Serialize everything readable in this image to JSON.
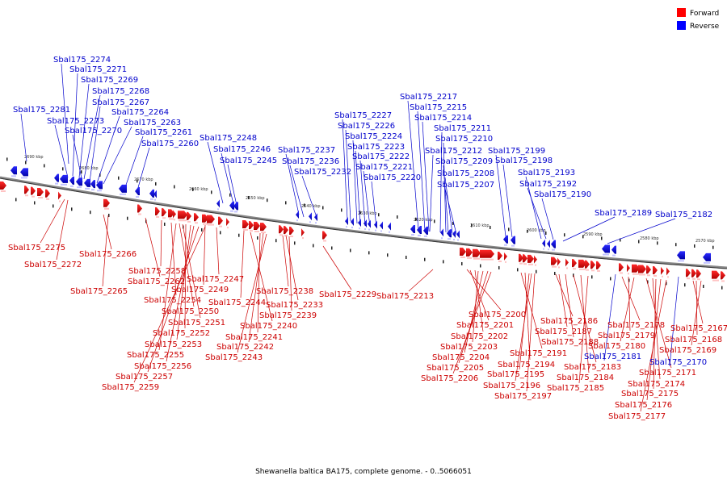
{
  "caption": "Shewanella baltica BA175, complete genome. - 0..5066051",
  "legend": [
    {
      "label": "Forward",
      "color": "#ff0000"
    },
    {
      "label": "Reverse",
      "color": "#0000ff"
    }
  ],
  "colors": {
    "forward": "#cc0000",
    "reverse": "#0000cc",
    "backbone": "#777777"
  },
  "scale_labels": [
    "2690 kbp",
    "2680 kbp",
    "2670 kbp",
    "2660 kbp",
    "2650 kbp",
    "2640 kbp",
    "2630 kbp",
    "2620 kbp",
    "2610 kbp",
    "2600 kbp",
    "2590 kbp",
    "2580 kbp",
    "2570 kbp"
  ],
  "reverse_labels": [
    "Sbal175_2274",
    "Sbal175_2271",
    "Sbal175_2269",
    "Sbal175_2268",
    "Sbal175_2267",
    "Sbal175_2281",
    "Sbal175_2264",
    "Sbal175_2273",
    "Sbal175_2263",
    "Sbal175_2270",
    "Sbal175_2261",
    "Sbal175_2260",
    "Sbal175_2248",
    "Sbal175_2246",
    "Sbal175_2245",
    "Sbal175_2237",
    "Sbal175_2236",
    "Sbal175_2232",
    "Sbal175_2227",
    "Sbal175_2226",
    "Sbal175_2224",
    "Sbal175_2223",
    "Sbal175_2222",
    "Sbal175_2221",
    "Sbal175_2220",
    "Sbal175_2217",
    "Sbal175_2215",
    "Sbal175_2214",
    "Sbal175_2211",
    "Sbal175_2210",
    "Sbal175_2212",
    "Sbal175_2209",
    "Sbal175_2208",
    "Sbal175_2207",
    "Sbal175_2199",
    "Sbal175_2198",
    "Sbal175_2193",
    "Sbal175_2192",
    "Sbal175_2190",
    "Sbal175_2189",
    "Sbal175_2182",
    "Sbal175_2181",
    "Sbal175_2170"
  ],
  "forward_labels": [
    "Sbal175_2275",
    "Sbal175_2272",
    "Sbal175_2266",
    "Sbal175_2262",
    "Sbal175_2265",
    "Sbal175_2258",
    "Sbal175_2247",
    "Sbal175_2249",
    "Sbal175_2254",
    "Sbal175_2250",
    "Sbal175_2251",
    "Sbal175_2252",
    "Sbal175_2253",
    "Sbal175_2255",
    "Sbal175_2256",
    "Sbal175_2257",
    "Sbal175_2259",
    "Sbal175_2244",
    "Sbal175_2240",
    "Sbal175_2241",
    "Sbal175_2242",
    "Sbal175_2243",
    "Sbal175_2238",
    "Sbal175_2233",
    "Sbal175_2239",
    "Sbal175_2229",
    "Sbal175_2213",
    "Sbal175_2200",
    "Sbal175_2201",
    "Sbal175_2202",
    "Sbal175_2203",
    "Sbal175_2204",
    "Sbal175_2205",
    "Sbal175_2206",
    "Sbal175_2191",
    "Sbal175_2194",
    "Sbal175_2195",
    "Sbal175_2196",
    "Sbal175_2197",
    "Sbal175_2186",
    "Sbal175_2187",
    "Sbal175_2188",
    "Sbal175_2183",
    "Sbal175_2184",
    "Sbal175_2185",
    "Sbal175_2178",
    "Sbal175_2179",
    "Sbal175_2180",
    "Sbal175_2167",
    "Sbal175_2168",
    "Sbal175_2169",
    "Sbal175_2171",
    "Sbal175_2174",
    "Sbal175_2175",
    "Sbal175_2176",
    "Sbal175_2177"
  ]
}
